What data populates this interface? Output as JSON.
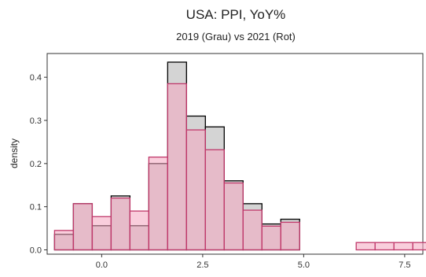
{
  "chart_data": {
    "type": "bar",
    "title": "USA: PPI, YoY%",
    "subtitle": "2019 (Grau) vs 2021 (Rot)",
    "xlabel": "",
    "ylabel": "density",
    "xlim": [
      -1.35,
      7.95
    ],
    "ylim": [
      -0.01,
      0.455
    ],
    "x_ticks": [
      0.0,
      2.5,
      5.0,
      7.5
    ],
    "x_tick_labels": [
      "0.0",
      "2.5",
      "5.0",
      "7.5"
    ],
    "y_ticks": [
      0.0,
      0.1,
      0.2,
      0.3,
      0.4
    ],
    "y_tick_labels": [
      "0.0",
      "0.1",
      "0.2",
      "0.3",
      "0.4"
    ],
    "bin_width": 0.4667,
    "bin_start": -1.167,
    "series": [
      {
        "name": "2019",
        "fill": "#bdbdbd",
        "stroke": "#000000",
        "values": [
          0.036,
          0.107,
          0.056,
          0.125,
          0.056,
          0.2,
          0.435,
          0.31,
          0.285,
          0.16,
          0.107,
          0.06,
          0.071,
          0,
          0,
          0,
          0,
          0,
          0,
          0
        ]
      },
      {
        "name": "2021",
        "fill": "#f4a6c0",
        "stroke": "#c0396b",
        "values": [
          0.045,
          0.107,
          0.077,
          0.12,
          0.09,
          0.215,
          0.385,
          0.278,
          0.232,
          0.155,
          0.092,
          0.055,
          0.064,
          0,
          0,
          0,
          0.017,
          0.017,
          0.017,
          0.017
        ]
      }
    ],
    "grid": false
  }
}
